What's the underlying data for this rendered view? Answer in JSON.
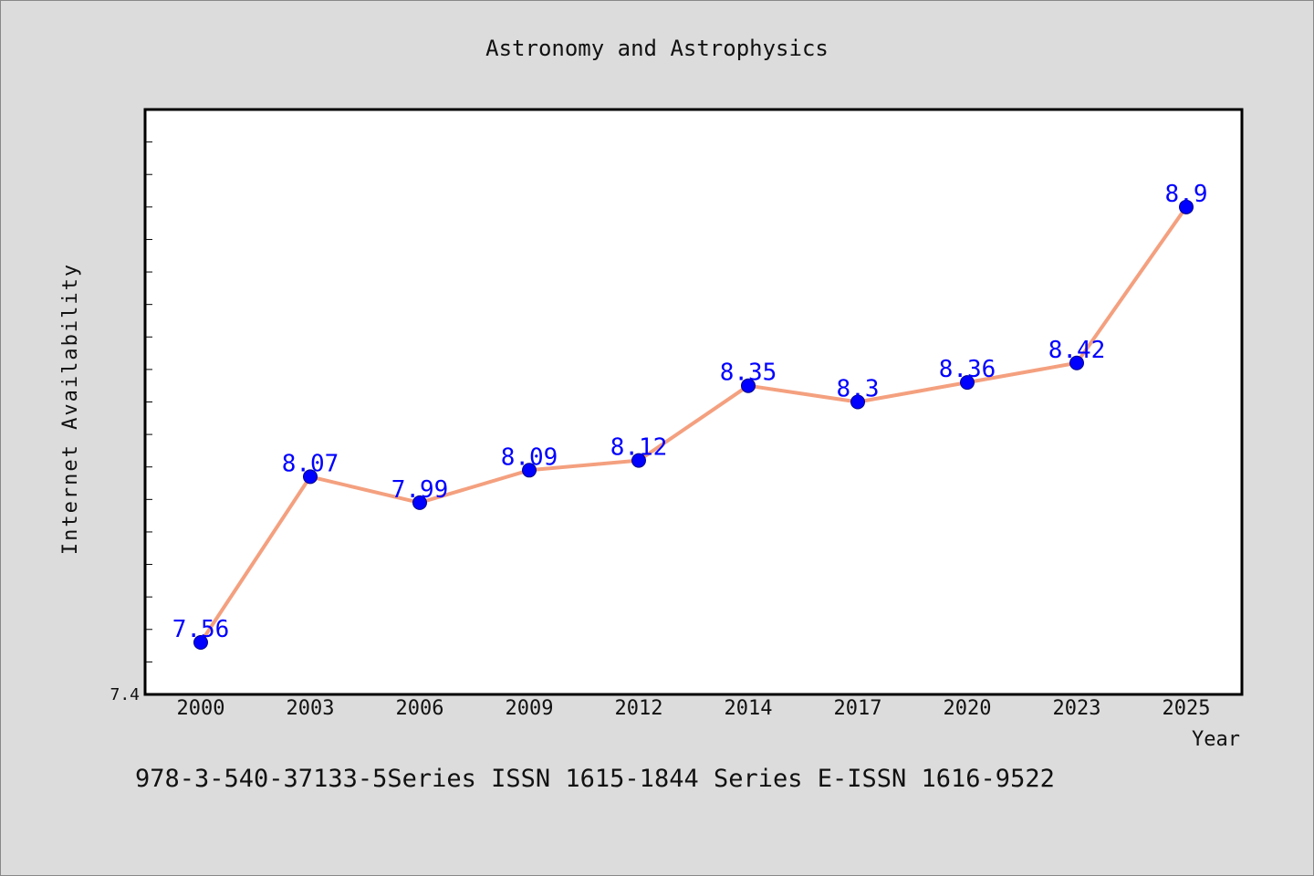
{
  "chart_data": {
    "type": "line",
    "title": "Astronomy and Astrophysics",
    "xlabel": "Year",
    "ylabel": "Internet Availability",
    "categories": [
      "2000",
      "2003",
      "2006",
      "2009",
      "2012",
      "2014",
      "2017",
      "2020",
      "2023",
      "2025"
    ],
    "series": [
      {
        "values": [
          7.56,
          8.07,
          7.99,
          8.09,
          8.12,
          8.35,
          8.3,
          8.36,
          8.42,
          8.9
        ],
        "data_labels": [
          "7.56",
          "8.07",
          "7.99",
          "8.09",
          "8.12",
          "8.35",
          "8.3",
          "8.36",
          "8.42",
          "8.9"
        ]
      }
    ],
    "ylim": [
      7.4,
      9.2
    ],
    "y_tick_labels": [
      "7.4"
    ],
    "grid": false,
    "footnote": "978-3-540-37133-5Series ISSN 1615-1844 Series E-ISSN 1616-9522",
    "colors": {
      "background": "#dcdcdc",
      "plot_background": "#ffffff",
      "line": "#f4a07f",
      "marker": "#0000ff",
      "data_label": "#0000ff",
      "text": "#111111"
    }
  }
}
